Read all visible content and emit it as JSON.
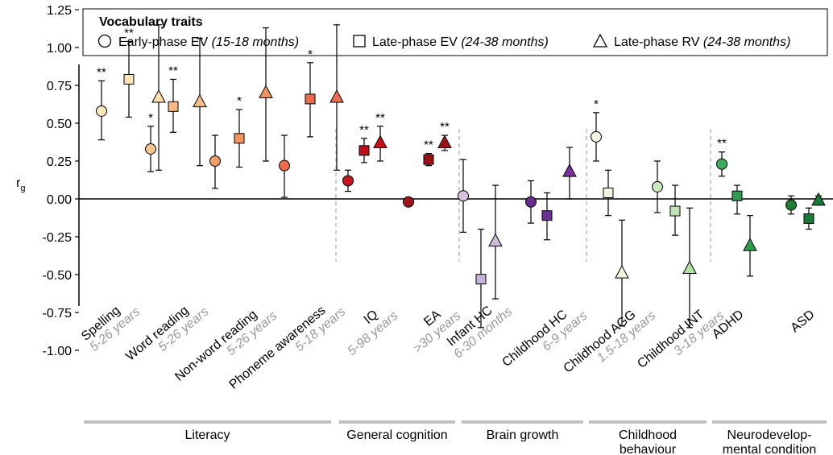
{
  "chart_data": {
    "type": "scatter",
    "ylabel": "r",
    "ylabel_sub": "g",
    "ylim": [
      -1.1,
      1.35
    ],
    "y_ticks": [
      "1.25",
      "1.00",
      "0.75",
      "0.50",
      "0.25",
      "0.00",
      "-0.25",
      "-0.50",
      "-0.75",
      "-1.00"
    ],
    "y_tick_values": [
      1.25,
      1.0,
      0.75,
      0.5,
      0.25,
      0.0,
      -0.25,
      -0.5,
      -0.75,
      -1.0
    ],
    "legend": {
      "title": "Vocabulary traits",
      "placement": "top",
      "entries": [
        {
          "shape": "circle",
          "label": "Early-phase EV",
          "detail": "(15-18 months)"
        },
        {
          "shape": "square",
          "label": "Late-phase EV",
          "detail": "(24-38 months)"
        },
        {
          "shape": "triangle",
          "label": "Late-phase RV",
          "detail": "(24-38 months)"
        }
      ]
    },
    "traits": [
      {
        "label": "Spelling",
        "age": "5-26 years",
        "points": [
          {
            "shape": "circle",
            "y": 0.58,
            "lo": 0.39,
            "hi": 0.78,
            "sig": "**",
            "color": "#fbe9ba"
          },
          {
            "shape": "square",
            "y": 0.79,
            "lo": 0.54,
            "hi": 1.04,
            "sig": "**",
            "color": "#fde4b4"
          },
          {
            "shape": "triangle",
            "y": 0.67,
            "lo": 0.19,
            "hi": 1.15,
            "sig": "",
            "color": "#fde1b0"
          }
        ]
      },
      {
        "label": "Word reading",
        "age": "5-26 years",
        "points": [
          {
            "shape": "circle",
            "y": 0.33,
            "lo": 0.18,
            "hi": 0.48,
            "sig": "*",
            "color": "#f9c58e"
          },
          {
            "shape": "square",
            "y": 0.61,
            "lo": 0.44,
            "hi": 0.79,
            "sig": "**",
            "color": "#f8b784"
          },
          {
            "shape": "triangle",
            "y": 0.64,
            "lo": 0.22,
            "hi": 1.06,
            "sig": "",
            "color": "#f9bd88"
          }
        ]
      },
      {
        "label": "Non-word reading",
        "age": "5-26 years",
        "points": [
          {
            "shape": "circle",
            "y": 0.25,
            "lo": 0.07,
            "hi": 0.42,
            "sig": "",
            "color": "#f19b6b"
          },
          {
            "shape": "square",
            "y": 0.4,
            "lo": 0.21,
            "hi": 0.59,
            "sig": "*",
            "color": "#f3955f"
          },
          {
            "shape": "triangle",
            "y": 0.7,
            "lo": 0.25,
            "hi": 1.13,
            "sig": "",
            "color": "#f2955f"
          }
        ]
      },
      {
        "label": "Phoneme awareness",
        "age": "5-18 years",
        "points": [
          {
            "shape": "circle",
            "y": 0.22,
            "lo": 0.01,
            "hi": 0.42,
            "sig": "",
            "color": "#ea6d4e"
          },
          {
            "shape": "square",
            "y": 0.66,
            "lo": 0.41,
            "hi": 0.9,
            "sig": "*",
            "color": "#ec6b4d"
          },
          {
            "shape": "triangle",
            "y": 0.67,
            "lo": 0.19,
            "hi": 1.15,
            "sig": "",
            "color": "#ec6f4f"
          }
        ]
      },
      {
        "label": "IQ",
        "age": "5-98 years",
        "points": [
          {
            "shape": "circle",
            "y": 0.12,
            "lo": 0.05,
            "hi": 0.19,
            "sig": "",
            "color": "#c8141c"
          },
          {
            "shape": "square",
            "y": 0.32,
            "lo": 0.24,
            "hi": 0.4,
            "sig": "**",
            "color": "#c00f19"
          },
          {
            "shape": "triangle",
            "y": 0.37,
            "lo": 0.25,
            "hi": 0.48,
            "sig": "**",
            "color": "#c61018"
          }
        ]
      },
      {
        "label": "EA",
        "age": ">30 years",
        "points": [
          {
            "shape": "circle",
            "y": -0.02,
            "lo": -0.03,
            "hi": 0.0,
            "sig": "",
            "color": "#a3131a"
          },
          {
            "shape": "square",
            "y": 0.26,
            "lo": 0.22,
            "hi": 0.3,
            "sig": "**",
            "color": "#9b0f16"
          },
          {
            "shape": "triangle",
            "y": 0.37,
            "lo": 0.32,
            "hi": 0.42,
            "sig": "**",
            "color": "#a10e15"
          }
        ]
      },
      {
        "label": "Infant HC",
        "age": "6-30 months",
        "points": [
          {
            "shape": "circle",
            "y": 0.02,
            "lo": -0.22,
            "hi": 0.26,
            "sig": "",
            "color": "#d6c2dd"
          },
          {
            "shape": "square",
            "y": -0.53,
            "lo": -0.85,
            "hi": -0.2,
            "sig": "",
            "color": "#c8b2d6"
          },
          {
            "shape": "triangle",
            "y": -0.28,
            "lo": -0.66,
            "hi": 0.09,
            "sig": "",
            "color": "#cdb9da"
          }
        ]
      },
      {
        "label": "Childhood HC",
        "age": "6-9 years",
        "points": [
          {
            "shape": "circle",
            "y": -0.02,
            "lo": -0.16,
            "hi": 0.12,
            "sig": "",
            "color": "#6a2d8d"
          },
          {
            "shape": "square",
            "y": -0.11,
            "lo": -0.27,
            "hi": 0.04,
            "sig": "",
            "color": "#6f3093"
          },
          {
            "shape": "triangle",
            "y": 0.18,
            "lo": 0.0,
            "hi": 0.34,
            "sig": "",
            "color": "#7a2f9a"
          }
        ]
      },
      {
        "label": "Childhood AGG",
        "age": "1.5-18 years",
        "points": [
          {
            "shape": "circle",
            "y": 0.41,
            "lo": 0.25,
            "hi": 0.57,
            "sig": "*",
            "color": "#f1f8e4"
          },
          {
            "shape": "square",
            "y": 0.04,
            "lo": -0.11,
            "hi": 0.19,
            "sig": "",
            "color": "#eef6e0"
          },
          {
            "shape": "triangle",
            "y": -0.49,
            "lo": -0.84,
            "hi": -0.14,
            "sig": "",
            "color": "#eef6df"
          }
        ]
      },
      {
        "label": "Childhood INT",
        "age": "3-18 years",
        "points": [
          {
            "shape": "circle",
            "y": 0.08,
            "lo": -0.09,
            "hi": 0.25,
            "sig": "",
            "color": "#cae8c0"
          },
          {
            "shape": "square",
            "y": -0.08,
            "lo": -0.24,
            "hi": 0.09,
            "sig": "",
            "color": "#bfe3b4"
          },
          {
            "shape": "triangle",
            "y": -0.46,
            "lo": -0.85,
            "hi": -0.06,
            "sig": "",
            "color": "#b3dea6"
          }
        ]
      },
      {
        "label": "ADHD",
        "age": "",
        "points": [
          {
            "shape": "circle",
            "y": 0.23,
            "lo": 0.15,
            "hi": 0.31,
            "sig": "**",
            "color": "#41ab5d"
          },
          {
            "shape": "square",
            "y": 0.02,
            "lo": -0.1,
            "hi": 0.09,
            "sig": "",
            "color": "#2f9c4f"
          },
          {
            "shape": "triangle",
            "y": -0.31,
            "lo": -0.51,
            "hi": -0.11,
            "sig": "",
            "color": "#2e9b4c"
          }
        ]
      },
      {
        "label": "ASD",
        "age": "",
        "points": [
          {
            "shape": "circle",
            "y": -0.04,
            "lo": -0.1,
            "hi": 0.02,
            "sig": "",
            "color": "#1f7d3a"
          },
          {
            "shape": "square",
            "y": -0.13,
            "lo": -0.2,
            "hi": -0.06,
            "sig": "",
            "color": "#187a36"
          },
          {
            "shape": "triangle",
            "y": -0.01,
            "lo": -0.04,
            "hi": 0.02,
            "sig": "",
            "color": "#1c7a38"
          }
        ]
      }
    ],
    "groups": [
      {
        "label": "Literacy",
        "lines": [
          "Literacy"
        ],
        "from": 0,
        "to": 3
      },
      {
        "label": "General cognition",
        "lines": [
          "General cognition"
        ],
        "from": 4,
        "to": 5
      },
      {
        "label": "Brain growth",
        "lines": [
          "Brain growth"
        ],
        "from": 6,
        "to": 7
      },
      {
        "label": "Childhood behaviour",
        "lines": [
          "Childhood",
          "behaviour"
        ],
        "from": 8,
        "to": 9
      },
      {
        "label": "Neurodevelopmental condition",
        "lines": [
          "Neurodevelop-",
          "mental condition"
        ],
        "from": 10,
        "to": 11
      }
    ]
  }
}
